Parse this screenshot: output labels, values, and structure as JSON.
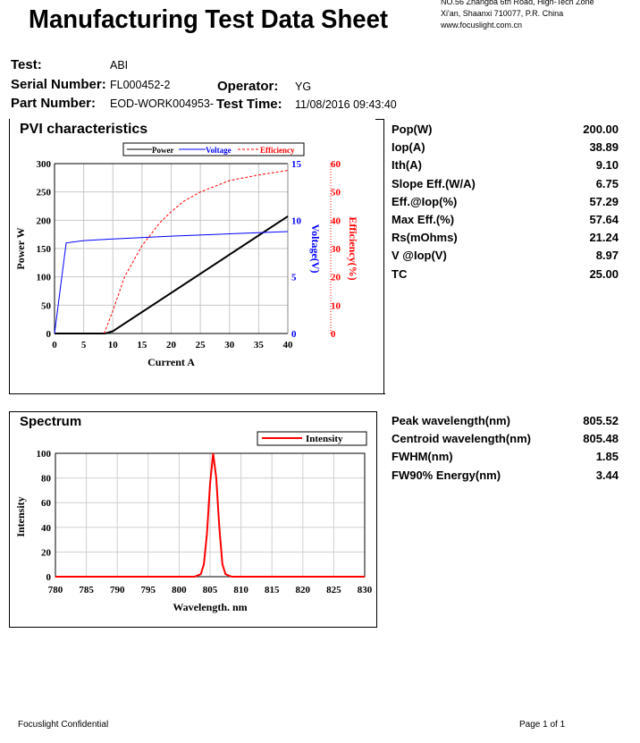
{
  "header": {
    "title": "Manufacturing Test Data Sheet",
    "address": [
      "NO.56 Zhangba 6th Road, High-Tech Zone",
      "Xi'an, Shaanxi 710077,  P.R.  China",
      "www.focuslight.com.cn"
    ]
  },
  "info": {
    "test_label": "Test:",
    "test": "ABI",
    "serial_label": "Serial Number:",
    "serial": "FL000452-2",
    "operator_label": "Operator:",
    "operator": "YG",
    "part_label": "Part Number:",
    "part": "EOD-WORK004953-",
    "time_label": "Test Time:",
    "time": "11/08/2016 09:43:40"
  },
  "pvi": {
    "title": "PVI characteristics",
    "params": [
      [
        "Pop(W)",
        "200.00"
      ],
      [
        "Iop(A)",
        "38.89"
      ],
      [
        "Ith(A)",
        "9.10"
      ],
      [
        "Slope Eff.(W/A)",
        "6.75"
      ],
      [
        "Eff.@Iop(%)",
        "57.29"
      ],
      [
        "Max Eff.(%)",
        "57.64"
      ],
      [
        "Rs(mOhms)",
        "21.24"
      ],
      [
        "V @Iop(V)",
        "8.97"
      ],
      [
        "TC",
        "25.00"
      ]
    ]
  },
  "spectrum": {
    "title": "Spectrum",
    "params": [
      [
        "Peak wavelength(nm)",
        "805.52"
      ],
      [
        "Centroid wavelength(nm)",
        "805.48"
      ],
      [
        "FWHM(nm)",
        "1.85"
      ],
      [
        "FW90% Energy(nm)",
        "3.44"
      ]
    ]
  },
  "footer": {
    "left": "Focuslight Confidential",
    "right": "Page 1 of 1"
  },
  "chart_data": [
    {
      "type": "line",
      "title": "PVI characteristics",
      "xlabel": "Current A",
      "ylabel": "Power W",
      "y2label": "Voltage(V)",
      "y3label": "Efficiency(%)",
      "xlim": [
        0,
        40
      ],
      "ylim": [
        0,
        300
      ],
      "y2lim": [
        0,
        15
      ],
      "y3lim": [
        0,
        60
      ],
      "xticks": [
        "0",
        "5",
        "10",
        "15",
        "20",
        "25",
        "30",
        "35",
        "40"
      ],
      "yticks": [
        "0",
        "50",
        "100",
        "150",
        "200",
        "250",
        "300"
      ],
      "y2ticks": [
        "0",
        "5",
        "10",
        "15"
      ],
      "y3ticks": [
        "0",
        "10",
        "20",
        "30",
        "40",
        "50",
        "60"
      ],
      "legend": [
        "Power",
        "Voltage",
        "Efficiency"
      ],
      "series": [
        {
          "name": "Power",
          "color": "#000000",
          "axis": "y",
          "points": [
            [
              0,
              0
            ],
            [
              8.7,
              0
            ],
            [
              10,
              4
            ],
            [
              40,
              207
            ]
          ]
        },
        {
          "name": "Voltage",
          "color": "#0000ff",
          "axis": "y2",
          "points": [
            [
              0,
              0
            ],
            [
              2,
              8
            ],
            [
              5,
              8.2
            ],
            [
              10,
              8.35
            ],
            [
              20,
              8.6
            ],
            [
              30,
              8.8
            ],
            [
              40,
              9.0
            ]
          ]
        },
        {
          "name": "Efficiency",
          "color": "#ff0000",
          "axis": "y3",
          "points": [
            [
              8.5,
              0
            ],
            [
              10,
              8
            ],
            [
              12,
              20
            ],
            [
              15,
              31
            ],
            [
              18,
              39
            ],
            [
              20,
              43
            ],
            [
              22,
              46.5
            ],
            [
              25,
              50
            ],
            [
              30,
              54
            ],
            [
              35,
              56
            ],
            [
              40,
              57.6
            ]
          ]
        }
      ]
    },
    {
      "type": "line",
      "title": "Spectrum",
      "xlabel": "Wavelength. nm",
      "ylabel": "Intensity",
      "xlim": [
        780,
        830
      ],
      "ylim": [
        0,
        100
      ],
      "xticks": [
        "780",
        "785",
        "790",
        "795",
        "800",
        "805",
        "810",
        "815",
        "820",
        "825",
        "830"
      ],
      "yticks": [
        "0",
        "20",
        "40",
        "60",
        "80",
        "100"
      ],
      "legend": [
        "Intensity"
      ],
      "series": [
        {
          "name": "Intensity",
          "color": "#ff0000",
          "peak": 805.52,
          "fwhm": 1.85,
          "points": [
            [
              780,
              0
            ],
            [
              802.5,
              0
            ],
            [
              803.5,
              2
            ],
            [
              804,
              10
            ],
            [
              804.5,
              35
            ],
            [
              805,
              75
            ],
            [
              805.5,
              100
            ],
            [
              806,
              80
            ],
            [
              806.5,
              40
            ],
            [
              807,
              10
            ],
            [
              807.5,
              2
            ],
            [
              808.5,
              0
            ],
            [
              830,
              0
            ]
          ]
        }
      ]
    }
  ]
}
